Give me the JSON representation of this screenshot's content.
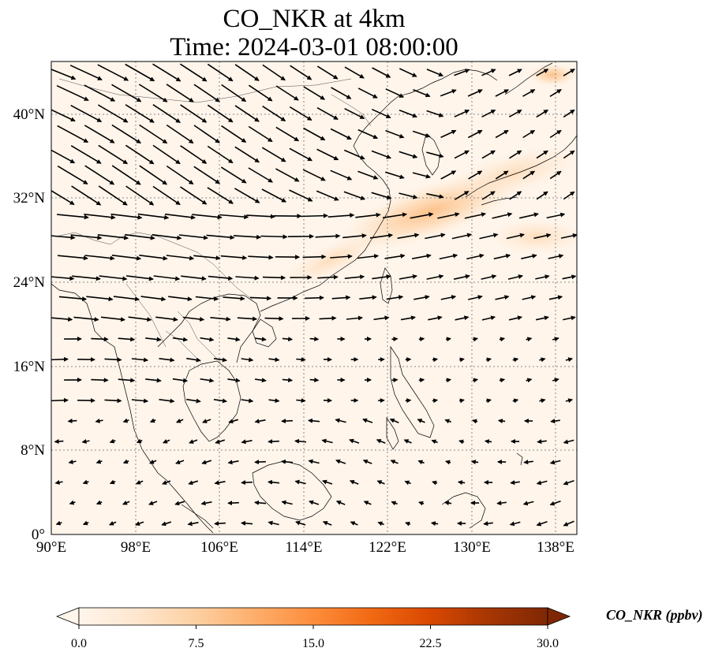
{
  "title": {
    "line1": "CO_NKR at 4km",
    "line2": "Time: 2024-03-01 08:00:00"
  },
  "map": {
    "extent": {
      "lon": [
        90,
        140
      ],
      "lat": [
        0,
        45
      ]
    },
    "lon_ticks": [
      "90°E",
      "98°E",
      "106°E",
      "114°E",
      "122°E",
      "130°E",
      "138°E"
    ],
    "lat_ticks": [
      "0°",
      "8°N",
      "16°N",
      "24°N",
      "32°N",
      "40°N"
    ],
    "gridlines": true,
    "coastlines": true,
    "field_color_low": "#fff5eb",
    "field_color_high": "#7f2704",
    "plume": {
      "description_hidden": false,
      "peak_value_ppbv": 8,
      "background_value_ppbv": 1
    },
    "wind_vectors": true
  },
  "colorbar": {
    "label": "CO_NKR (ppbv)",
    "min": 0,
    "max": 30,
    "ticks": [
      "0.0",
      "7.5",
      "15.0",
      "22.5",
      "30.0"
    ],
    "extend": "both",
    "colors": [
      "#fff5eb",
      "#fee6ce",
      "#fdd0a2",
      "#fdae6b",
      "#fd8d3c",
      "#f16913",
      "#d94801",
      "#a63603",
      "#7f2704"
    ]
  }
}
